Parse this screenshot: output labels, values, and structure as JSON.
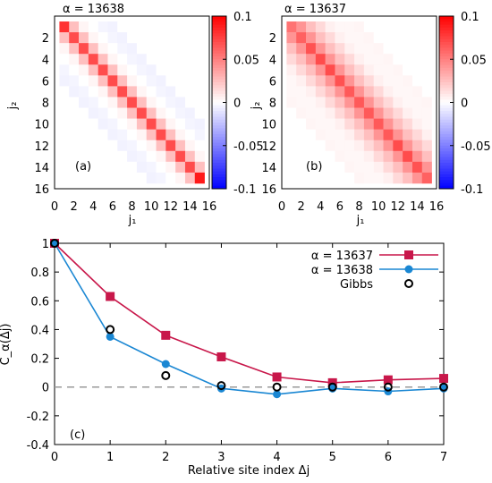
{
  "colors": {
    "alpha13637": "#c8174a",
    "alpha13638": "#1a87d3",
    "gibbs": "#000000",
    "zero_line": "#999999",
    "cmap_pos": "#ff0000",
    "cmap_neg": "#0000ff"
  },
  "chart_data": [
    {
      "type": "heatmap",
      "panel_label": "(a)",
      "title": "α = 13638",
      "xlabel": "j₁",
      "ylabel": "j₂",
      "x_ticks": [
        "0",
        "2",
        "4",
        "6",
        "8",
        "10",
        "12",
        "14",
        "16"
      ],
      "y_ticks": [
        "2",
        "4",
        "6",
        "8",
        "10",
        "12",
        "14",
        "16"
      ],
      "colorbar_ticks": [
        "0.1",
        "0.05",
        "0",
        "-0.05",
        "-0.1"
      ],
      "colorbar_range": [
        -0.1,
        0.1
      ],
      "size": 15,
      "diagonal": [
        0.08,
        0.07,
        0.07,
        0.07,
        0.07,
        0.07,
        0.07,
        0.07,
        0.07,
        0.07,
        0.07,
        0.07,
        0.07,
        0.07,
        0.09
      ],
      "offdiag_by_distance": [
        0.025,
        0.004,
        0.0,
        -0.004,
        -0.005,
        0.0,
        0.0
      ]
    },
    {
      "type": "heatmap",
      "panel_label": "(b)",
      "title": "α = 13637",
      "xlabel": "j₁",
      "ylabel": "j₂",
      "x_ticks": [
        "0",
        "2",
        "4",
        "6",
        "8",
        "10",
        "12",
        "14",
        "16"
      ],
      "y_ticks": [
        "2",
        "4",
        "6",
        "8",
        "10",
        "12",
        "14",
        "16"
      ],
      "colorbar_ticks": [
        "0.1",
        "0.05",
        "0",
        "-0.05",
        "-0.1"
      ],
      "colorbar_range": [
        -0.1,
        0.1
      ],
      "size": 15,
      "diagonal": [
        0.055,
        0.062,
        0.068,
        0.07,
        0.07,
        0.068,
        0.065,
        0.065,
        0.065,
        0.065,
        0.065,
        0.07,
        0.07,
        0.068,
        0.062
      ],
      "offdiag_by_distance": [
        0.042,
        0.025,
        0.015,
        0.006,
        0.003,
        0.003,
        0.004
      ]
    },
    {
      "type": "line",
      "panel_label": "(c)",
      "xlabel": "Relative site index Δj",
      "ylabel": "C_α(Δj)",
      "xlim": [
        0,
        7
      ],
      "ylim": [
        -0.4,
        1.0
      ],
      "x_ticks": [
        "0",
        "1",
        "2",
        "3",
        "4",
        "5",
        "6",
        "7"
      ],
      "y_ticks": [
        "1",
        "0.8",
        "0.6",
        "0.4",
        "0.2",
        "0",
        "-0.2",
        "-0.4"
      ],
      "legend_position": "top-right",
      "x": [
        0,
        1,
        2,
        3,
        4,
        5,
        6,
        7
      ],
      "series": [
        {
          "name": "α = 13637",
          "marker": "square",
          "values": [
            1.0,
            0.63,
            0.36,
            0.21,
            0.07,
            0.03,
            0.05,
            0.06
          ]
        },
        {
          "name": "α = 13638",
          "marker": "circle",
          "values": [
            1.0,
            0.35,
            0.16,
            -0.01,
            -0.05,
            -0.01,
            -0.03,
            -0.01
          ]
        },
        {
          "name": "Gibbs",
          "marker": "open-circle",
          "line": false,
          "values": [
            1.0,
            0.4,
            0.08,
            0.01,
            0.0,
            0.0,
            0.0,
            0.0
          ]
        }
      ]
    }
  ]
}
